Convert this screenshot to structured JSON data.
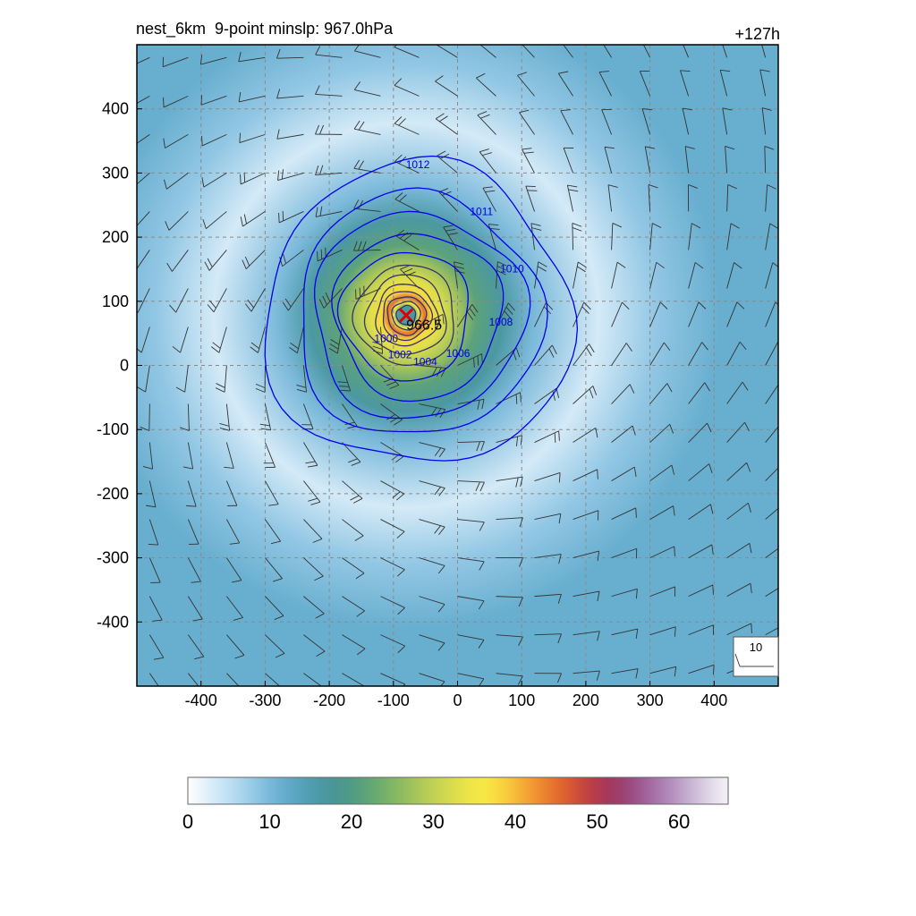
{
  "header": {
    "title": "nest_6km  9-point minslp: 967.0hPa",
    "lead_time": "+127h"
  },
  "chart_data": {
    "type": "heatmap",
    "xlim": [
      -500,
      500
    ],
    "ylim": [
      -500,
      500
    ],
    "xticks": [
      -400,
      -300,
      -200,
      -100,
      0,
      100,
      200,
      300,
      400
    ],
    "yticks": [
      -400,
      -300,
      -200,
      -100,
      0,
      100,
      200,
      300,
      400
    ],
    "grid": true,
    "center": {
      "x": -80,
      "y": 78,
      "label": "966.5"
    },
    "wind_speed_field": {
      "rings": [
        {
          "radius": 490,
          "value": 12
        },
        {
          "radius": 390,
          "value": 8
        },
        {
          "radius": 300,
          "value": 3
        },
        {
          "radius": 200,
          "value": 10
        },
        {
          "radius": 150,
          "value": 16
        },
        {
          "radius": 110,
          "value": 22
        },
        {
          "radius": 80,
          "value": 28
        },
        {
          "radius": 55,
          "value": 33
        },
        {
          "radius": 38,
          "value": 38
        },
        {
          "radius": 28,
          "value": 44
        },
        {
          "radius": 20,
          "value": 36
        },
        {
          "radius": 13,
          "value": 16
        }
      ]
    },
    "pressure_contours": [
      {
        "label": "1012",
        "color": "#0000ee",
        "rx": 240,
        "ry": 235
      },
      {
        "label": "1011",
        "color": "#0000ee",
        "rx": 190,
        "ry": 190
      },
      {
        "label": "1010",
        "color": "#0000ee",
        "rx": 165,
        "ry": 160
      },
      {
        "label": "1008",
        "color": "#0000ee",
        "rx": 130,
        "ry": 130
      },
      {
        "label": "1006",
        "color": "#0000ee",
        "rx": 100,
        "ry": 100
      },
      {
        "label": "1004",
        "color": "#333366",
        "rx": 78,
        "ry": 78
      },
      {
        "label": "1002",
        "color": "#333366",
        "rx": 62,
        "ry": 62
      },
      {
        "label": "1000",
        "color": "#333366",
        "rx": 48,
        "ry": 48
      },
      {
        "label": "",
        "color": "#333366",
        "rx": 38,
        "ry": 38
      },
      {
        "label": "",
        "color": "#333366",
        "rx": 30,
        "ry": 30
      },
      {
        "label": "",
        "color": "#333366",
        "rx": 22,
        "ry": 22
      },
      {
        "label": "",
        "color": "#333366",
        "rx": 15,
        "ry": 15
      }
    ],
    "wind_reference": {
      "label": "10"
    }
  },
  "colorbar": {
    "ticks": [
      "0",
      "10",
      "20",
      "30",
      "40",
      "50",
      "60"
    ],
    "min": 0,
    "max": 66,
    "colors": [
      "#ffffff",
      "#eaf4fb",
      "#d4eaf7",
      "#bfe0f3",
      "#a9d4ed",
      "#92c7e4",
      "#7bb9da",
      "#68aecf",
      "#5ba5c2",
      "#509eb2",
      "#4b98a2",
      "#4a9694",
      "#4f9a86",
      "#5ba27a",
      "#6aab6e",
      "#7db566",
      "#93bd60",
      "#a9c65a",
      "#bdcf55",
      "#d0d850",
      "#e1df4b",
      "#efe548",
      "#f7e844",
      "#f8d840",
      "#f7c13b",
      "#f4a634",
      "#ef8d30",
      "#e6752e",
      "#db5f31",
      "#cc4b3a",
      "#b93d48",
      "#a7375a",
      "#9c3f6e",
      "#9b4f86",
      "#a2649c",
      "#ab7caf",
      "#b794c0",
      "#c5aed0",
      "#d5c7df",
      "#e6dfec",
      "#f4f0f7"
    ]
  }
}
